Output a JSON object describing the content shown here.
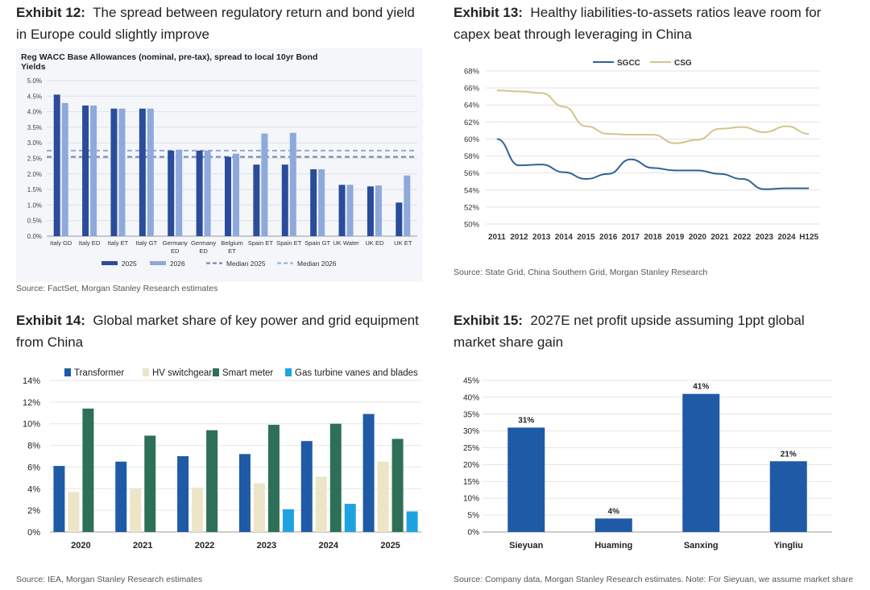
{
  "exhibits": {
    "e12": {
      "label": "Exhibit 12:",
      "text": "The spread between regulatory return and bond yield in Europe could slightly improve",
      "source": "Source: FactSet, Morgan Stanley Research estimates"
    },
    "e13": {
      "label": "Exhibit 13:",
      "text": "Healthy liabilities-to-assets ratios leave room for capex beat through leveraging in China",
      "source": "Source: State Grid, China Southern Grid, Morgan Stanley Research"
    },
    "e14": {
      "label": "Exhibit 14:",
      "text": "Global market share of key power and grid equipment from China",
      "source": "Source: IEA, Morgan Stanley Research estimates"
    },
    "e15": {
      "label": "Exhibit 15:",
      "text": "2027E net profit upside assuming 1ppt global market share gain",
      "source": "Source: Company data, Morgan Stanley Research estimates. Note: For Sieyuan, we assume market share"
    }
  },
  "colors": {
    "dark_blue": "#2B4B9B",
    "light_blue": "#8EA9DB",
    "sgcc": "#2E6496",
    "csg": "#D2C48E",
    "transformer": "#1F5AA6",
    "hv": "#EDE5C8",
    "smart_meter": "#2E7057",
    "gas": "#1FA3E0",
    "e15_bar": "#1F5AA6"
  },
  "chart_data": [
    {
      "id": "e12",
      "type": "bar",
      "title": "Reg WACC Base Allowances (nominal, pre-tax), spread to local 10yr Bond Yields",
      "title_lines": [
        "Reg WACC Base Allowances (nominal, pre-tax), spread to local 10yr Bond",
        "Yields"
      ],
      "categories": [
        "Italy GD",
        "Italy ED",
        "Italy ET",
        "Italy GT",
        "Germany ED",
        "Germany ED",
        "Belgium ET",
        "Spain ET",
        "Spain ET",
        "Spain GT",
        "UK Water",
        "UK ED",
        "UK ET"
      ],
      "category_lines": [
        [
          "Italy GD"
        ],
        [
          "Italy ED"
        ],
        [
          "Italy ET"
        ],
        [
          "Italy GT"
        ],
        [
          "Germany",
          "ED"
        ],
        [
          "Germany",
          "ED"
        ],
        [
          "Belgium",
          "ET"
        ],
        [
          "Spain ET"
        ],
        [
          "Spain ET"
        ],
        [
          "Spain GT"
        ],
        [
          "UK Water"
        ],
        [
          "UK ED"
        ],
        [
          "UK ET"
        ]
      ],
      "series": [
        {
          "name": "2025",
          "values": [
            4.55,
            4.2,
            4.1,
            4.1,
            2.75,
            2.75,
            2.55,
            2.3,
            2.3,
            2.15,
            1.65,
            1.6,
            1.08
          ]
        },
        {
          "name": "2026",
          "values": [
            4.28,
            4.2,
            4.1,
            4.1,
            2.78,
            2.75,
            2.65,
            3.3,
            3.32,
            2.15,
            1.65,
            1.63,
            1.95
          ]
        }
      ],
      "median_2025": 2.55,
      "median_2026": 2.75,
      "legend": [
        "2025",
        "2026",
        "Median 2025",
        "Median 2026"
      ],
      "ylim": [
        0,
        5
      ],
      "yticks": [
        "0.0%",
        "0.5%",
        "1.0%",
        "1.5%",
        "2.0%",
        "2.5%",
        "3.0%",
        "3.5%",
        "4.0%",
        "4.5%",
        "5.0%"
      ],
      "grid": true
    },
    {
      "id": "e13",
      "type": "line",
      "categories": [
        "2011",
        "2012",
        "2013",
        "2014",
        "2015",
        "2016",
        "2017",
        "2018",
        "2019",
        "2020",
        "2021",
        "2022",
        "2023",
        "2024",
        "H125"
      ],
      "series": [
        {
          "name": "SGCC",
          "values": [
            60.0,
            56.9,
            57.0,
            56.1,
            55.3,
            55.9,
            57.6,
            56.6,
            56.3,
            56.3,
            55.9,
            55.3,
            54.1,
            54.2,
            54.2
          ]
        },
        {
          "name": "CSG",
          "values": [
            65.7,
            65.6,
            65.4,
            63.8,
            61.5,
            60.6,
            60.5,
            60.5,
            59.5,
            59.9,
            61.2,
            61.4,
            60.8,
            61.5,
            60.6
          ]
        }
      ],
      "ylim": [
        50,
        68
      ],
      "yticks": [
        "50%",
        "52%",
        "54%",
        "56%",
        "58%",
        "60%",
        "62%",
        "64%",
        "66%",
        "68%"
      ],
      "legend": [
        "SGCC",
        "CSG"
      ],
      "grid": true
    },
    {
      "id": "e14",
      "type": "bar",
      "categories": [
        "2020",
        "2021",
        "2022",
        "2023",
        "2024",
        "2025"
      ],
      "series": [
        {
          "name": "Transformer",
          "values": [
            6.1,
            6.5,
            7.0,
            7.2,
            8.4,
            10.9
          ]
        },
        {
          "name": "HV switchgear",
          "values": [
            3.7,
            4.0,
            4.1,
            4.5,
            5.1,
            6.5
          ]
        },
        {
          "name": "Smart meter",
          "values": [
            11.4,
            8.9,
            9.4,
            9.9,
            10.0,
            8.6
          ]
        },
        {
          "name": "Gas turbine vanes and blades",
          "values": [
            0,
            0,
            0,
            2.1,
            2.6,
            1.9
          ]
        }
      ],
      "ylim": [
        0,
        14
      ],
      "yticks": [
        "0%",
        "2%",
        "4%",
        "6%",
        "8%",
        "10%",
        "12%",
        "14%"
      ],
      "legend": [
        "Transformer",
        "HV switchgear",
        "Smart meter",
        "Gas turbine vanes and blades"
      ],
      "grid": true
    },
    {
      "id": "e15",
      "type": "bar",
      "categories": [
        "Sieyuan",
        "Huaming",
        "Sanxing",
        "Yingliu"
      ],
      "values": [
        31,
        4,
        41,
        21
      ],
      "data_labels": [
        "31%",
        "4%",
        "41%",
        "21%"
      ],
      "ylim": [
        0,
        45
      ],
      "yticks": [
        "0%",
        "5%",
        "10%",
        "15%",
        "20%",
        "25%",
        "30%",
        "35%",
        "40%",
        "45%"
      ],
      "grid": true
    }
  ]
}
